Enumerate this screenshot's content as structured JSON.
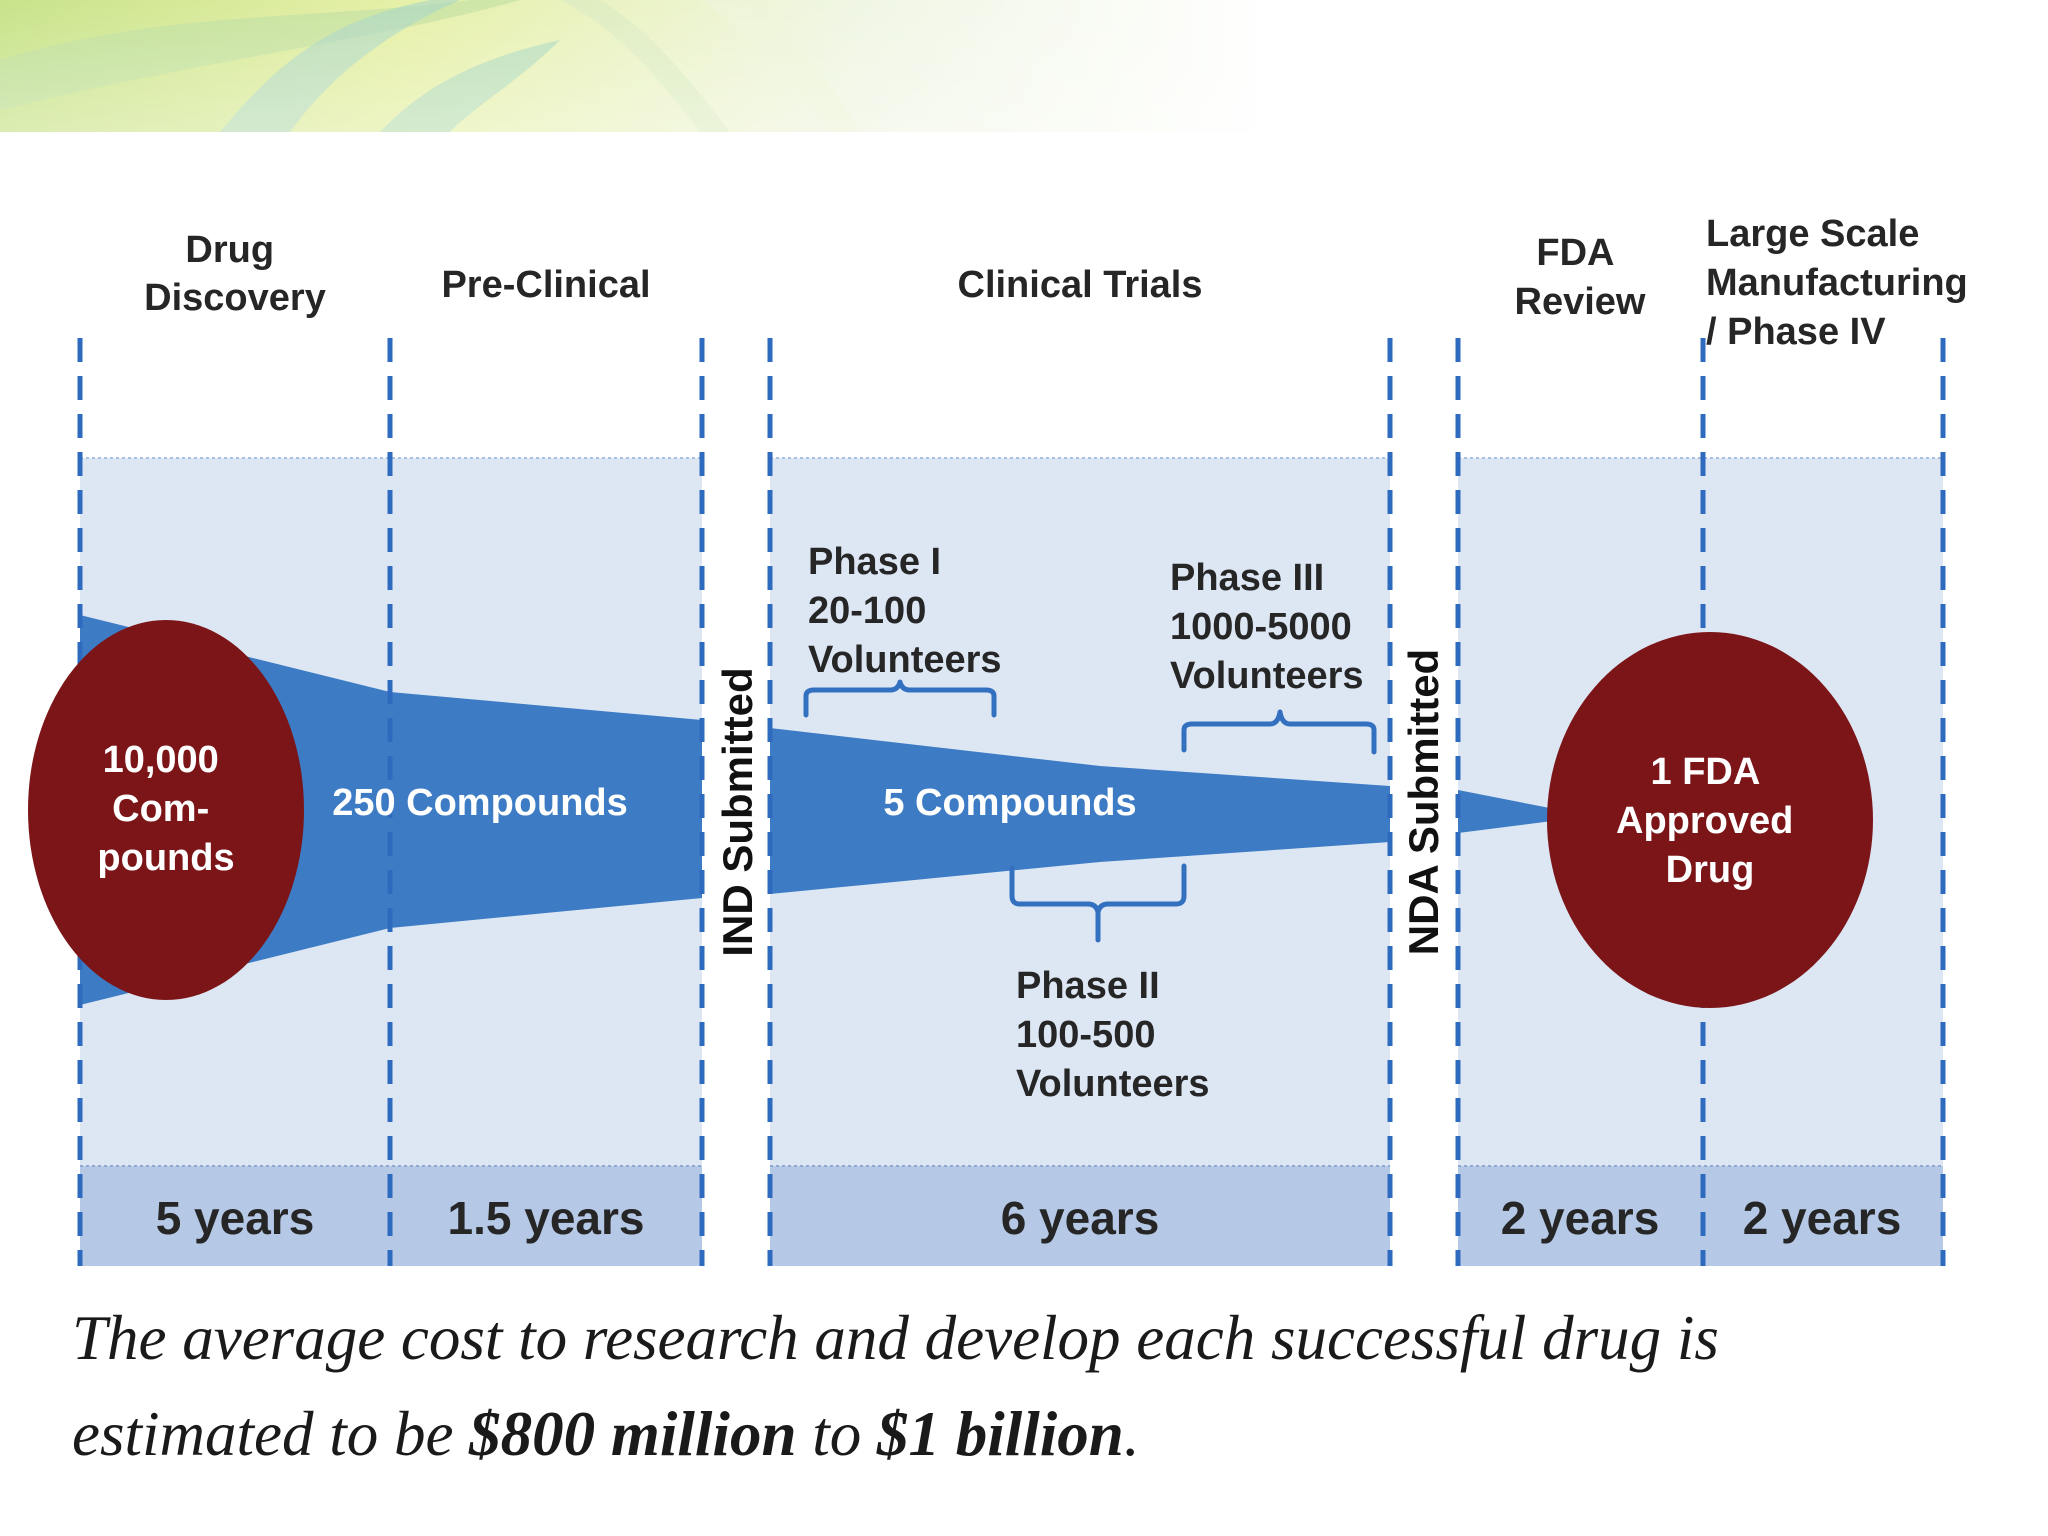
{
  "stages": {
    "drug_discovery": [
      "Drug",
      "Discovery"
    ],
    "pre_clinical": "Pre-Clinical",
    "clinical_trials": "Clinical Trials",
    "fda_review": [
      "FDA",
      "Review"
    ],
    "manufacturing": [
      "Large Scale",
      "Manufacturing",
      "/ Phase IV"
    ]
  },
  "milestones": {
    "ind": "IND Submitted",
    "nda": "NDA Submitted"
  },
  "compounds": {
    "start": [
      "10,000",
      "Com-",
      "pounds"
    ],
    "pre_clinical": "250 Compounds",
    "clinical": "5 Compounds",
    "approved": [
      "1 FDA",
      "Approved",
      "Drug"
    ]
  },
  "phases": {
    "phase1": [
      "Phase I",
      "20-100",
      "Volunteers"
    ],
    "phase2": [
      "Phase II",
      "100-500",
      "Volunteers"
    ],
    "phase3": [
      "Phase III",
      "1000-5000",
      "Volunteers"
    ]
  },
  "durations": {
    "drug_discovery": "5 years",
    "pre_clinical": "1.5 years",
    "clinical_trials": "6 years",
    "fda_review": "2 years",
    "manufacturing": "2 years"
  },
  "caption": {
    "part1": "The average cost to research and develop each successful drug is estimated to be ",
    "amount_low": "$800 million",
    "part2": " to ",
    "amount_high": "$1 billion",
    "part3": "."
  },
  "colors": {
    "panel_fill": "#dde7f4",
    "duration_fill": "#b5c8e6",
    "funnel_blue": "#3d7cc4",
    "circle_maroon": "#7b1518",
    "dash_blue": "#2e6bbf"
  }
}
